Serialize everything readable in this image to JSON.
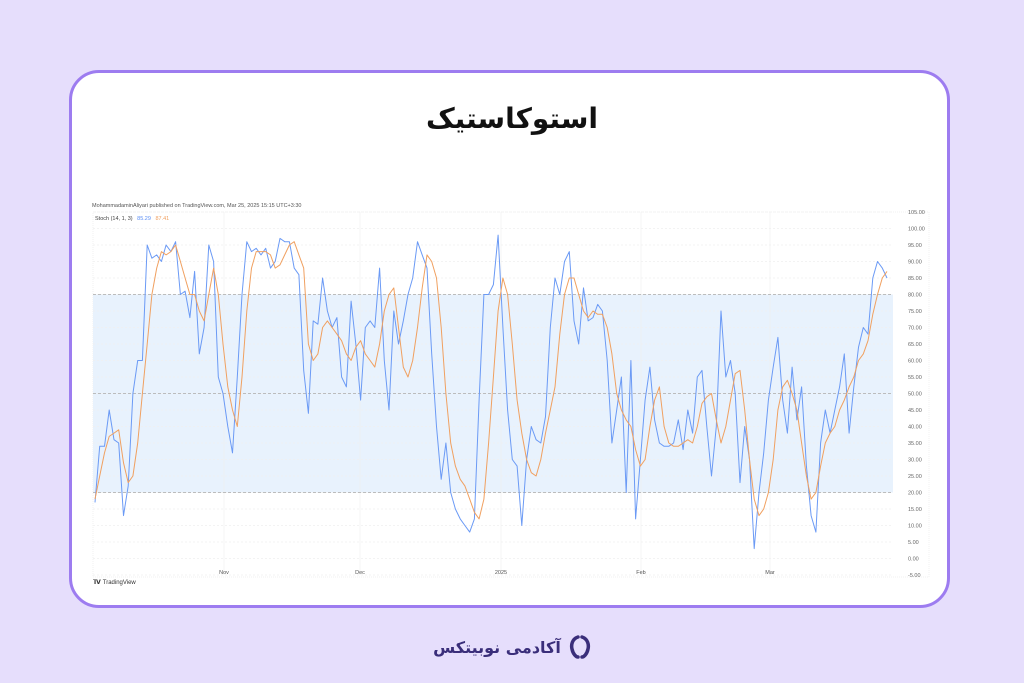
{
  "page": {
    "title": "استوکاستیک",
    "footer_brand": "آکادمی نوبیتکس",
    "colors": {
      "background": "#e6defc",
      "card_border": "#9d7cf0",
      "k_line": "#6b9af5",
      "d_line": "#f0a060",
      "band_fill": "#e8f2fd",
      "brand": "#3a2e7a"
    }
  },
  "chart_header": {
    "publisher": "MohammadaminAliyari published on TradingView.com, Mar 25, 2025 15:15 UTC+3:30",
    "indicator": "Stoch (14, 1, 3)",
    "k_value": "85.29",
    "d_value": "87.41"
  },
  "watermark": "TradingView",
  "chart_data": {
    "type": "line",
    "title": "Stoch (14, 1, 3)",
    "xlabel": "",
    "ylabel": "",
    "ylim": [
      -5,
      105
    ],
    "y_ticks": [
      "105.00",
      "100.00",
      "95.00",
      "90.00",
      "85.00",
      "80.00",
      "75.00",
      "70.00",
      "65.00",
      "60.00",
      "55.00",
      "50.00",
      "45.00",
      "40.00",
      "35.00",
      "30.00",
      "25.00",
      "20.00",
      "15.00",
      "10.00",
      "5.00",
      "0.00",
      "-5.00"
    ],
    "x_tick_labels": [
      "Nov",
      "Dec",
      "2025",
      "Feb",
      "Mar"
    ],
    "x_tick_positions": [
      134,
      270,
      411,
      551,
      680
    ],
    "bands": {
      "upper": 80,
      "middle": 50,
      "lower": 20
    },
    "grid": true,
    "legend_position": "top-left",
    "series": [
      {
        "name": "%K",
        "color": "#6b9af5",
        "values": [
          17,
          34,
          34,
          45,
          36,
          35,
          13,
          22,
          50,
          60,
          60,
          95,
          91,
          92,
          90,
          95,
          93,
          96,
          80,
          81,
          73,
          87,
          62,
          70,
          95,
          90,
          55,
          50,
          40,
          32,
          55,
          80,
          96,
          93,
          94,
          92,
          94,
          88,
          90,
          97,
          96,
          96,
          88,
          86,
          57,
          44,
          72,
          71,
          85,
          75,
          70,
          73,
          55,
          52,
          78,
          65,
          48,
          70,
          72,
          70,
          88,
          60,
          45,
          75,
          65,
          72,
          80,
          85,
          96,
          92,
          88,
          62,
          40,
          24,
          35,
          20,
          15,
          12,
          10,
          8,
          12,
          48,
          80,
          80,
          83,
          98,
          70,
          45,
          30,
          28,
          10,
          30,
          40,
          36,
          35,
          43,
          70,
          85,
          80,
          90,
          93,
          72,
          65,
          82,
          72,
          73,
          77,
          75,
          60,
          35,
          45,
          55,
          20,
          60,
          12,
          30,
          48,
          58,
          42,
          35,
          34,
          34,
          35,
          42,
          33,
          45,
          38,
          55,
          57,
          40,
          25,
          40,
          75,
          55,
          60,
          50,
          23,
          40,
          30,
          3,
          20,
          32,
          48,
          58,
          67,
          48,
          38,
          58,
          42,
          52,
          28,
          13,
          8,
          35,
          45,
          38,
          45,
          52,
          62,
          38,
          52,
          64,
          70,
          68,
          85,
          90,
          88,
          85
        ]
      },
      {
        "name": "%D",
        "color": "#f0a060",
        "values": [
          18,
          25,
          32,
          37,
          38,
          39,
          29,
          23,
          25,
          35,
          50,
          65,
          80,
          88,
          93,
          92,
          93,
          95,
          90,
          85,
          80,
          80,
          75,
          72,
          80,
          88,
          80,
          65,
          52,
          45,
          40,
          55,
          75,
          88,
          93,
          93,
          93,
          92,
          88,
          89,
          92,
          95,
          96,
          92,
          88,
          65,
          60,
          62,
          70,
          72,
          70,
          68,
          66,
          62,
          60,
          64,
          66,
          62,
          60,
          58,
          65,
          75,
          80,
          82,
          70,
          58,
          55,
          60,
          70,
          82,
          92,
          90,
          85,
          70,
          50,
          35,
          28,
          24,
          22,
          18,
          14,
          12,
          18,
          35,
          55,
          75,
          85,
          80,
          65,
          48,
          38,
          30,
          26,
          25,
          30,
          38,
          45,
          52,
          68,
          80,
          85,
          85,
          80,
          75,
          73,
          75,
          74,
          74,
          70,
          62,
          50,
          45,
          42,
          40,
          33,
          28,
          30,
          40,
          48,
          52,
          40,
          35,
          34,
          34,
          35,
          36,
          35,
          40,
          47,
          49,
          50,
          42,
          35,
          40,
          48,
          56,
          57,
          45,
          30,
          18,
          13,
          15,
          20,
          30,
          45,
          52,
          54,
          50,
          45,
          35,
          25,
          18,
          20,
          28,
          35,
          38,
          40,
          45,
          48,
          52,
          55,
          60,
          62,
          66,
          74,
          80,
          85,
          87
        ]
      }
    ]
  }
}
